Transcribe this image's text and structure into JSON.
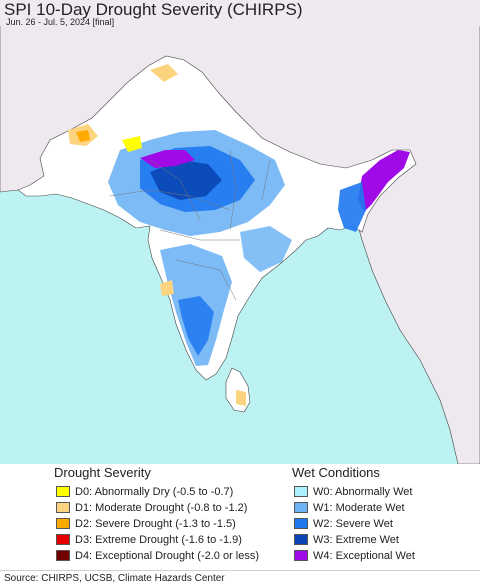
{
  "header": {
    "title": "SPI 10-Day Drought Severity (CHIRPS)",
    "subtitle": "Jun. 26 - Jul. 5, 2024 [final]"
  },
  "colors": {
    "ocean": "#bdf2f3",
    "land_no_data": "#eee8ef",
    "neutral": "#ffffff",
    "border": "#555555"
  },
  "legend": {
    "drought": {
      "heading": "Drought Severity",
      "items": [
        {
          "code": "D0",
          "label": "D0: Abnormally Dry (-0.5 to -0.7)",
          "color": "#ffff00"
        },
        {
          "code": "D1",
          "label": "D1: Moderate Drought (-0.8 to -1.2)",
          "color": "#fcd37f"
        },
        {
          "code": "D2",
          "label": "D2: Severe Drought (-1.3 to -1.5)",
          "color": "#ffaa00"
        },
        {
          "code": "D3",
          "label": "D3: Extreme Drought (-1.6 to -1.9)",
          "color": "#e60000"
        },
        {
          "code": "D4",
          "label": "D4: Exceptional Drought (-2.0 or less)",
          "color": "#730000"
        }
      ]
    },
    "wet": {
      "heading": "Wet Conditions",
      "items": [
        {
          "code": "W0",
          "label": "W0: Abnormally Wet",
          "color": "#aaf0ff"
        },
        {
          "code": "W1",
          "label": "W1: Moderate Wet",
          "color": "#6eb4f5"
        },
        {
          "code": "W2",
          "label": "W2: Severe Wet",
          "color": "#1e78f0"
        },
        {
          "code": "W3",
          "label": "W3: Extreme Wet",
          "color": "#0a46b4"
        },
        {
          "code": "W4",
          "label": "W4: Exceptional Wet",
          "color": "#a00ae6"
        }
      ]
    }
  },
  "footer": {
    "source": "Source: CHIRPS, UCSB, Climate Hazards Center"
  }
}
